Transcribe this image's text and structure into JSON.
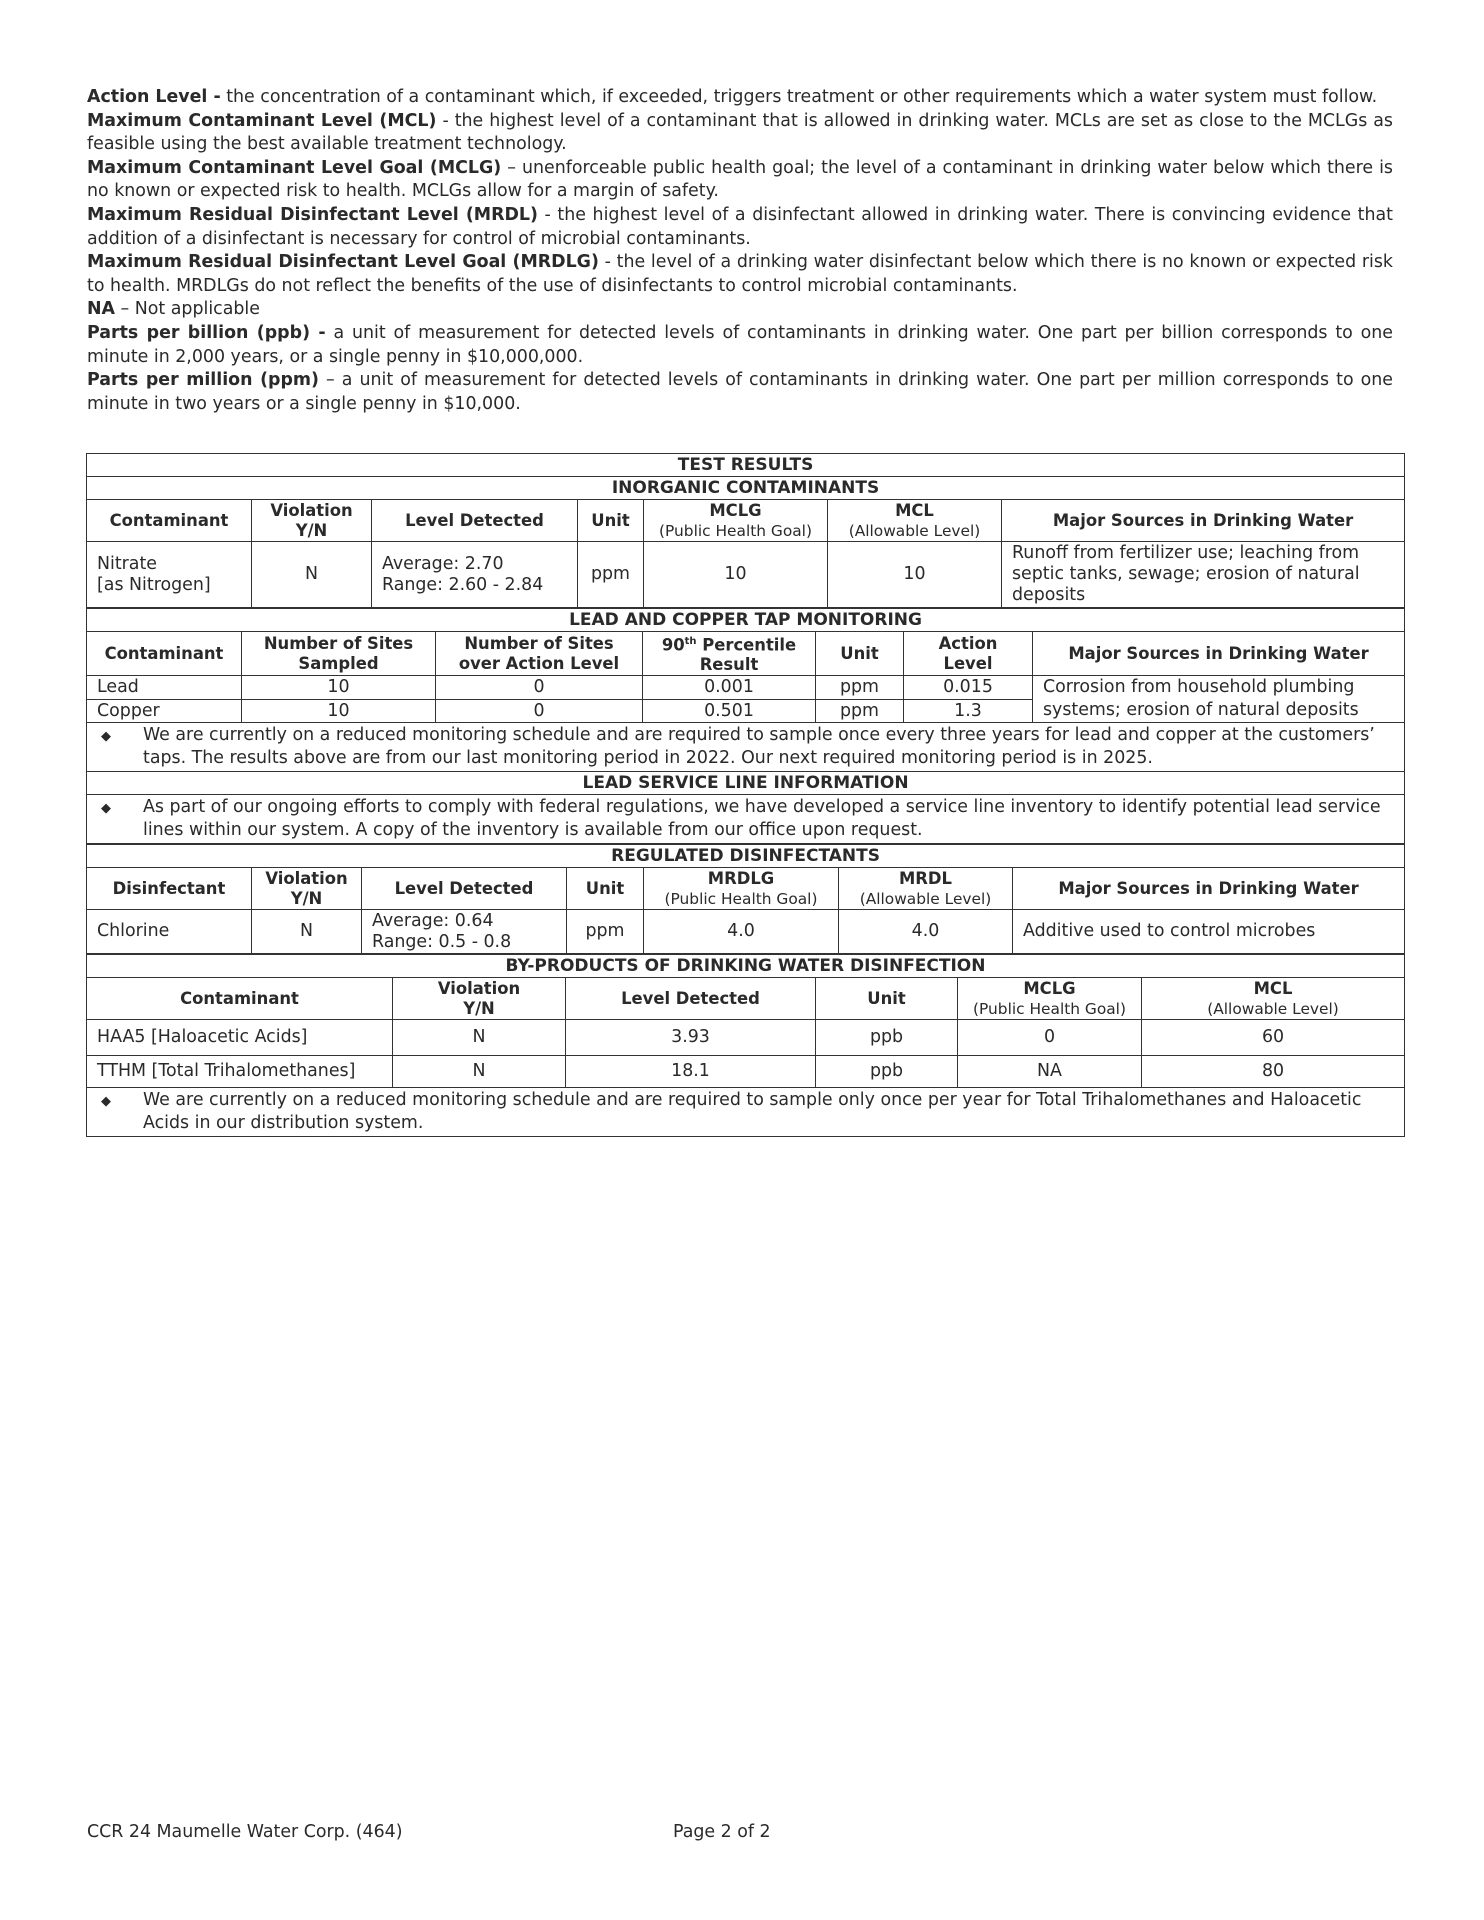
{
  "definitions": [
    {
      "term": "Action Level -",
      "text": " the concentration of a contaminant which, if exceeded, triggers treatment or other requirements which a water system must follow."
    },
    {
      "term": "Maximum Contaminant Level (MCL)",
      "text": " - the highest level of a contaminant that is allowed in drinking water.  MCLs are set as close to the MCLGs as feasible using the best available treatment technology."
    },
    {
      "term": "Maximum Contaminant Level Goal (MCLG)",
      "text": " – unenforceable public health goal; the level of a contaminant in drinking water below which there is no known or expected risk to health.  MCLGs allow for a margin of safety."
    },
    {
      "term": "Maximum Residual Disinfectant Level (MRDL)",
      "text": " - the highest level of a disinfectant allowed in drinking water.  There is convincing evidence that addition of a disinfectant is necessary for control of microbial contaminants."
    },
    {
      "term": "Maximum Residual Disinfectant Level Goal (MRDLG)",
      "text": " - the level of a drinking water disinfectant below which there is no known or expected risk to health.  MRDLGs do not reflect the benefits of the use of disinfectants to control microbial contaminants."
    },
    {
      "term": "NA",
      "text": " – Not applicable"
    },
    {
      "term": "Parts per billion (ppb) -",
      "text": " a unit of measurement for detected levels of contaminants in drinking water.  One part per billion corresponds to one minute in 2,000 years, or a single penny in $10,000,000."
    },
    {
      "term": "Parts per million (ppm)",
      "text": " – a unit of measurement for detected levels of contaminants in drinking water.  One part per million corresponds to one minute in two years or a single penny in $10,000."
    }
  ],
  "title": "TEST RESULTS",
  "inorganic": {
    "heading": "INORGANIC CONTAMINANTS",
    "headers": [
      "Contaminant",
      "Violation",
      "Y/N",
      "Level Detected",
      "Unit",
      "MCLG",
      "(Public Health Goal)",
      "MCL",
      "(Allowable Level)",
      "Major Sources in Drinking Water"
    ],
    "row": {
      "contaminant_1": "Nitrate",
      "contaminant_2": "[as Nitrogen]",
      "violation": "N",
      "level_1": "Average: 2.70",
      "level_2": "Range: 2.60 - 2.84",
      "unit": "ppm",
      "mclg": "10",
      "mcl": "10",
      "sources": "Runoff from fertilizer use; leaching from septic tanks, sewage; erosion of natural deposits"
    }
  },
  "lead_copper": {
    "heading": "LEAD AND COPPER TAP MONITORING",
    "headers": [
      "Contaminant",
      "Number of Sites",
      "Sampled",
      "Number of Sites",
      "over Action Level",
      "90",
      "th",
      " Percentile",
      "Result",
      "Unit",
      "Action",
      "Level",
      "Major Sources in Drinking Water"
    ],
    "rows": [
      {
        "contaminant": "Lead",
        "sampled": "10",
        "over": "0",
        "result": "0.001",
        "unit": "ppm",
        "action": "0.015"
      },
      {
        "contaminant": "Copper",
        "sampled": "10",
        "over": "0",
        "result": "0.501",
        "unit": "ppm",
        "action": "1.3"
      }
    ],
    "sources": "Corrosion from household plumbing systems; erosion of natural deposits",
    "note": "We are currently on a reduced monitoring schedule and are required to sample once every three years for lead and copper at the customers’ taps. The results above are from our last monitoring period in 2022. Our next required monitoring period is in 2025."
  },
  "service_line": {
    "heading": "LEAD SERVICE LINE INFORMATION",
    "note": "As part of our ongoing efforts to comply with federal regulations, we have developed a service line inventory to identify potential lead service lines within our system. A copy of the inventory is available from our office upon request."
  },
  "disinfectants": {
    "heading": "REGULATED DISINFECTANTS",
    "headers": [
      "Disinfectant",
      "Violation",
      "Y/N",
      "Level Detected",
      "Unit",
      "MRDLG",
      "(Public Health Goal)",
      "MRDL",
      "(Allowable Level)",
      "Major Sources in Drinking Water"
    ],
    "row": {
      "name": "Chlorine",
      "violation": "N",
      "level_1": "Average: 0.64",
      "level_2": "Range: 0.5 - 0.8",
      "unit": "ppm",
      "mrdlg": "4.0",
      "mrdl": "4.0",
      "sources": "Additive used to control microbes"
    }
  },
  "byproducts": {
    "heading": "BY-PRODUCTS OF DRINKING WATER DISINFECTION",
    "headers": [
      "Contaminant",
      "Violation",
      "Y/N",
      "Level Detected",
      "Unit",
      "MCLG",
      "(Public Health Goal)",
      "MCL",
      "(Allowable Level)"
    ],
    "rows": [
      {
        "contaminant": "HAA5 [Haloacetic Acids]",
        "violation": "N",
        "level": "3.93",
        "unit": "ppb",
        "mclg": "0",
        "mcl": "60"
      },
      {
        "contaminant": "TTHM [Total Trihalomethanes]",
        "violation": "N",
        "level": "18.1",
        "unit": "ppb",
        "mclg": "NA",
        "mcl": "80"
      }
    ],
    "note": "We are currently on a reduced monitoring schedule and are required to sample only once per year for Total Trihalomethanes and Haloacetic Acids in our distribution system."
  },
  "bullet_icon": "diamond-bullet",
  "footer": {
    "left": "CCR 24 Maumelle Water Corp. (464)",
    "center": "Page 2 of 2"
  }
}
